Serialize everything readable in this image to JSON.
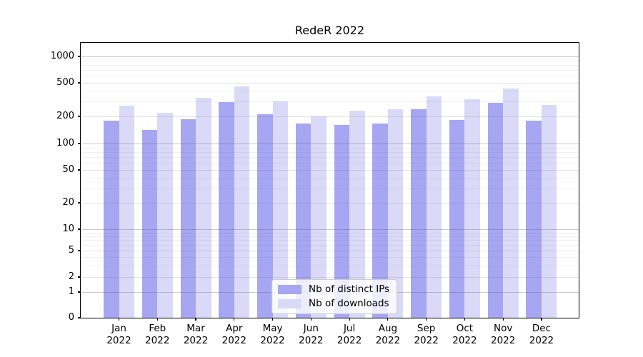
{
  "title": "RedeR 2022",
  "chart_data": {
    "type": "bar",
    "title": "RedeR 2022",
    "categories": [
      "Jan",
      "Feb",
      "Mar",
      "Apr",
      "May",
      "Jun",
      "Jul",
      "Aug",
      "Sep",
      "Oct",
      "Nov",
      "Dec"
    ],
    "year_label": "2022",
    "series": [
      {
        "name": "Nb of distinct IPs",
        "color": "#a6a6f2",
        "values": [
          178,
          142,
          185,
          295,
          213,
          167,
          161,
          166,
          243,
          183,
          290,
          178
        ]
      },
      {
        "name": "Nb of downloads",
        "color": "#dadaf8",
        "values": [
          268,
          222,
          335,
          458,
          300,
          200,
          234,
          243,
          345,
          318,
          425,
          272
        ]
      }
    ],
    "yscale": "symlog",
    "yticks": [
      0,
      1,
      2,
      5,
      10,
      20,
      50,
      100,
      200,
      500,
      1000
    ],
    "ylim_top_approx": 1440,
    "grid": true,
    "legend_position": "lower center",
    "colors": {
      "bar_distinct_ips": "#a6a6f2",
      "bar_downloads": "#dadaf8",
      "axis": "#000000",
      "background": "#ffffff"
    }
  },
  "legend": {
    "items": [
      {
        "label": "Nb of distinct IPs",
        "color": "#a6a6f2"
      },
      {
        "label": "Nb of downloads",
        "color": "#dadaf8"
      }
    ]
  }
}
